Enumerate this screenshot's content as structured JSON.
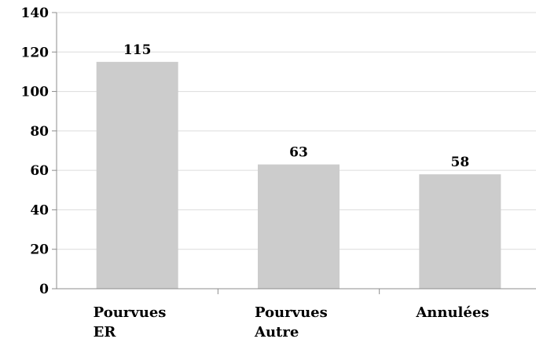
{
  "chart_data": {
    "type": "bar",
    "categories": [
      [
        "Pourvues",
        "ER"
      ],
      [
        "Pourvues",
        "Autre"
      ],
      [
        "Annulées"
      ]
    ],
    "values": [
      115,
      63,
      58
    ],
    "data_labels": [
      "115",
      "63",
      "58"
    ],
    "ylim": [
      0,
      140
    ],
    "yticks": [
      0,
      20,
      40,
      60,
      80,
      100,
      120,
      140
    ],
    "ytick_labels": [
      "0",
      "20",
      "40",
      "60",
      "80",
      "100",
      "120",
      "140"
    ],
    "grid": true,
    "legend": "none",
    "title": "",
    "xlabel": "",
    "ylabel": ""
  },
  "colors": {
    "bar": "#cccccc",
    "grid": "#dcdcdc",
    "axis": "#8c8c8c",
    "text": "#000000"
  }
}
